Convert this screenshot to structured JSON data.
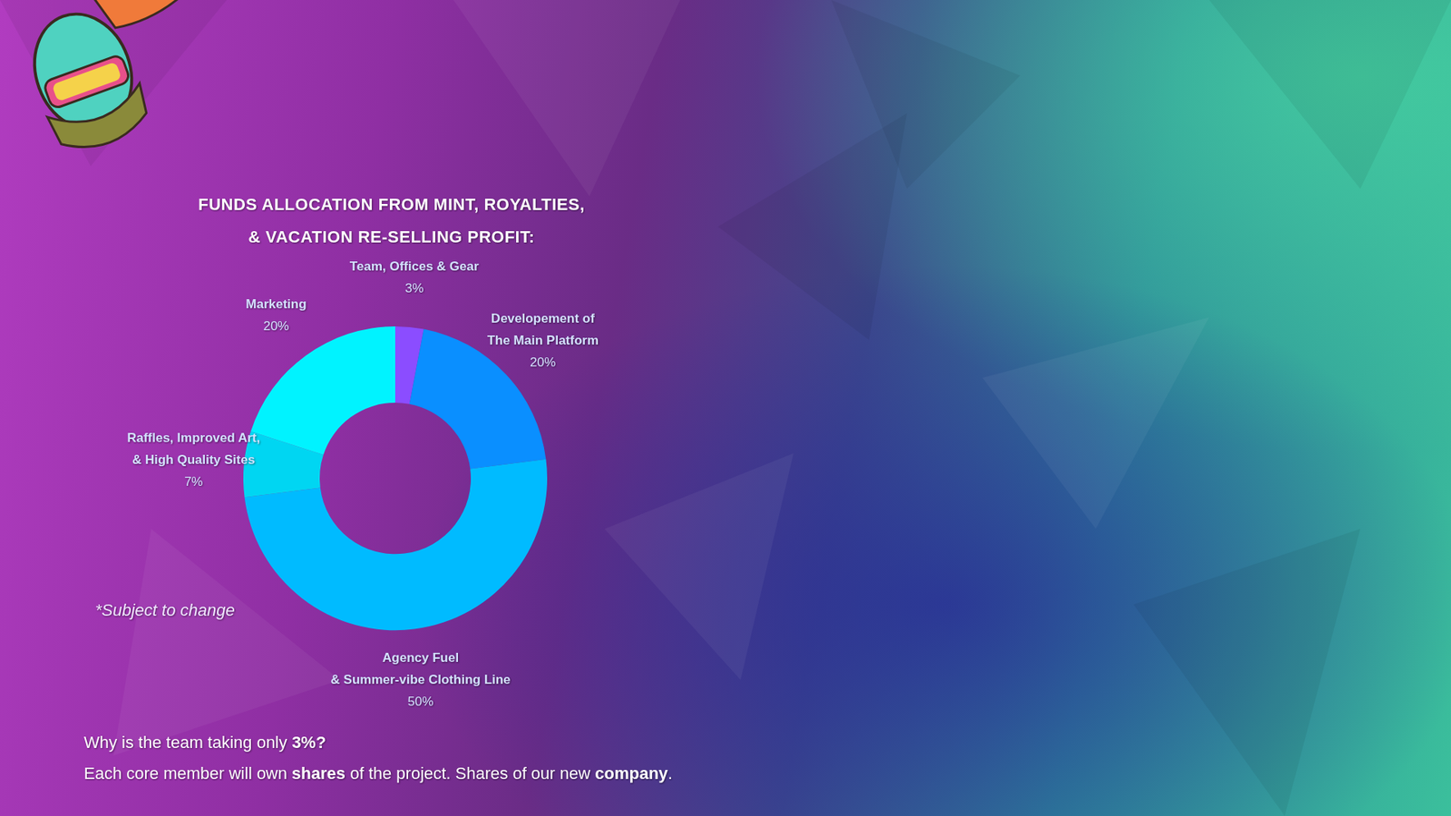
{
  "chart_data": {
    "type": "donut",
    "title": "FUNDS ALLOCATION FROM MINT, ROYALTIES,\n& VACATION RE-SELLING PROFIT:",
    "categories": [
      "Team, Offices & Gear",
      "Developement of\nThe Main Platform",
      "Agency Fuel\n& Summer-vibe Clothing Line",
      "Raffles, Improved Art,\n& High Quality Sites",
      "Marketing"
    ],
    "values": [
      3,
      20,
      50,
      7,
      20
    ],
    "value_labels": [
      "3%",
      "20%",
      "50%",
      "7%",
      "20%"
    ],
    "colors": [
      "#8b4dff",
      "#0a8fff",
      "#00bbff",
      "#00d6f2",
      "#00f3ff"
    ],
    "data_labels": true,
    "annotations": [
      "*Subject to change"
    ],
    "footnote": [
      [
        "Why is the team taking only ",
        "3%?"
      ],
      [
        "Each core member will own ",
        "shares",
        " of the project. Shares of our new ",
        "company",
        "."
      ]
    ]
  }
}
